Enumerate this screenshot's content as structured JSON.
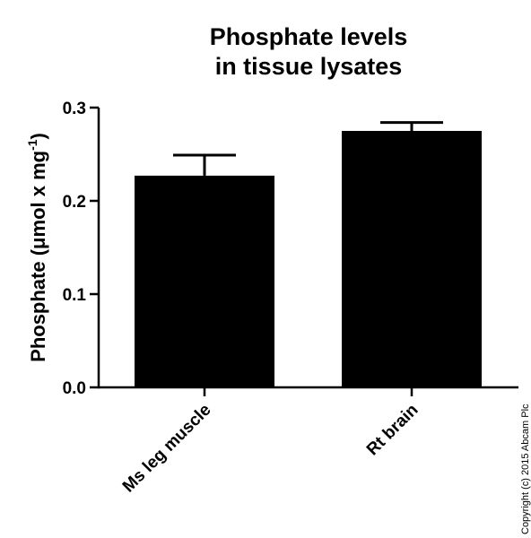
{
  "chart_data": {
    "type": "bar",
    "title_lines": [
      "Phosphate levels",
      "in tissue lysates"
    ],
    "ylabel_main": "Phosphate (",
    "ylabel_unit": "μmol x mg",
    "ylabel_sup": "-1",
    "ylabel_close": ")",
    "xlabel": "",
    "categories": [
      "Ms leg muscle",
      "Rt brain"
    ],
    "values": [
      0.227,
      0.275
    ],
    "errors": [
      0.022,
      0.009
    ],
    "ylim": [
      0.0,
      0.3
    ],
    "yticks": [
      0.0,
      0.1,
      0.2,
      0.3
    ],
    "ytick_labels": [
      "0.0",
      "0.1",
      "0.2",
      "0.3"
    ],
    "bar_color": "#000000",
    "grid": false,
    "legend": "none"
  },
  "copyright": "Copyright (c) 2015 Abcam Plc"
}
